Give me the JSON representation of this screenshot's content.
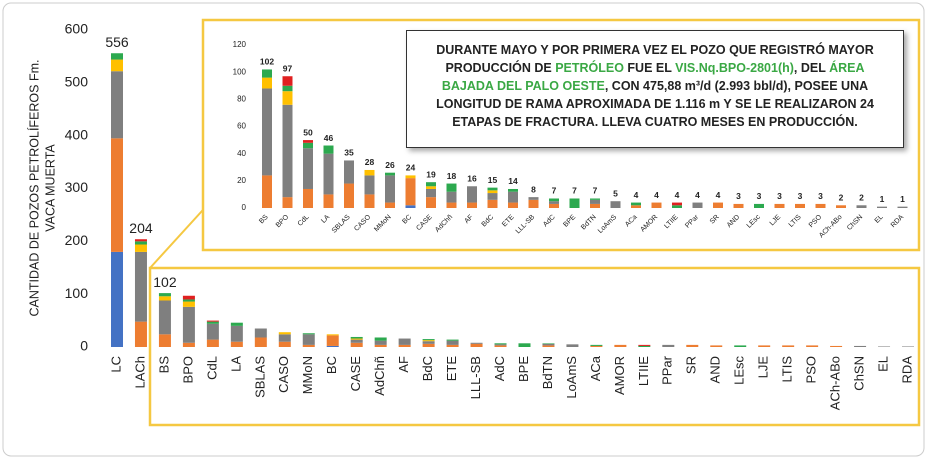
{
  "chart_data": [
    {
      "type": "stacked_bar",
      "y_label": [
        "CANTIDAD DE POZOS PETROLÍFEROS Fm.",
        "VACA MUERTA"
      ],
      "categories": [
        "LC",
        "LACh",
        "BS",
        "BPO",
        "CdL",
        "LA",
        "SBLAS",
        "CASO",
        "MMoN",
        "BC",
        "CASE",
        "AdChñ",
        "AF",
        "BdC",
        "ETE",
        "LLL-SB",
        "AdC",
        "BPE",
        "BdTN",
        "LoAmS",
        "ACa",
        "AMOR",
        "LTIIE",
        "PPar",
        "SR",
        "AND",
        "LEsc",
        "LJE",
        "LTIS",
        "PSO",
        "ACh-ABo",
        "ChSN",
        "EL",
        "RDA"
      ],
      "series": [
        {
          "color": "#4472c4",
          "values": [
            180,
            0,
            0,
            0,
            0,
            0,
            0,
            0,
            0,
            2,
            0,
            0,
            0,
            0,
            0,
            0,
            0,
            0,
            0,
            0,
            0,
            0,
            0,
            0,
            0,
            0,
            0,
            0,
            0,
            0,
            0,
            0,
            0,
            0
          ]
        },
        {
          "color": "#ed7d31",
          "values": [
            215,
            48,
            24,
            8,
            14,
            10,
            18,
            10,
            4,
            20,
            8,
            4,
            4,
            6,
            4,
            6,
            3,
            0,
            3,
            0,
            2,
            4,
            0,
            0,
            4,
            3,
            0,
            3,
            3,
            3,
            2,
            0,
            0,
            0
          ]
        },
        {
          "color": "#7f7f7f",
          "values": [
            127,
            132,
            64,
            68,
            30,
            30,
            17,
            14,
            20,
            0,
            6,
            8,
            12,
            5,
            8,
            2,
            2,
            0,
            3,
            5,
            0,
            0,
            0,
            4,
            0,
            0,
            0,
            0,
            0,
            0,
            0,
            2,
            1,
            1
          ]
        },
        {
          "color": "#ffc000",
          "values": [
            22,
            14,
            8,
            10,
            0,
            0,
            0,
            4,
            0,
            2,
            2,
            0,
            0,
            2,
            0,
            0,
            0,
            0,
            0,
            0,
            0,
            0,
            0,
            0,
            0,
            0,
            0,
            0,
            0,
            0,
            0,
            0,
            0,
            0
          ]
        },
        {
          "color": "#2ca94f",
          "values": [
            12,
            6,
            6,
            4,
            4,
            6,
            0,
            0,
            2,
            0,
            3,
            6,
            0,
            2,
            2,
            0,
            2,
            7,
            1,
            0,
            2,
            0,
            2,
            0,
            0,
            0,
            3,
            0,
            0,
            0,
            0,
            0,
            0,
            0
          ]
        },
        {
          "color": "#e02020",
          "values": [
            0,
            4,
            0,
            7,
            2,
            0,
            0,
            0,
            0,
            0,
            0,
            0,
            0,
            0,
            0,
            0,
            0,
            0,
            0,
            0,
            0,
            0,
            2,
            0,
            0,
            0,
            0,
            0,
            0,
            0,
            0,
            0,
            0,
            0
          ]
        }
      ],
      "totals": [
        556,
        204,
        102,
        null,
        null,
        null,
        null,
        null,
        null,
        null,
        null,
        null,
        null,
        null,
        null,
        null,
        null,
        null,
        null,
        null,
        null,
        null,
        null,
        null,
        null,
        null,
        null,
        null,
        null,
        null,
        null,
        null,
        null,
        null
      ],
      "ylim": [
        0,
        600
      ],
      "yticks": [
        0,
        100,
        200,
        300,
        400,
        500,
        600
      ]
    },
    {
      "type": "stacked_bar",
      "categories": [
        "BS",
        "BPO",
        "CdL",
        "LA",
        "SBLAS",
        "CASO",
        "MMoN",
        "BC",
        "CASE",
        "AdChñ",
        "AF",
        "BdC",
        "ETE",
        "LLL-SB",
        "AdC",
        "BPE",
        "BdTN",
        "LoAmS",
        "ACa",
        "AMOR",
        "LTIIE",
        "PPar",
        "SR",
        "AND",
        "LEsc",
        "LJE",
        "LTIS",
        "PSO",
        "ACh-ABo",
        "ChSN",
        "EL",
        "RDA"
      ],
      "series": [
        {
          "color": "#4472c4",
          "values": [
            0,
            0,
            0,
            0,
            0,
            0,
            0,
            2,
            0,
            0,
            0,
            0,
            0,
            0,
            0,
            0,
            0,
            0,
            0,
            0,
            0,
            0,
            0,
            0,
            0,
            0,
            0,
            0,
            0,
            0,
            0,
            0
          ]
        },
        {
          "color": "#ed7d31",
          "values": [
            24,
            8,
            14,
            10,
            18,
            10,
            4,
            20,
            8,
            4,
            4,
            6,
            4,
            6,
            3,
            0,
            3,
            0,
            2,
            4,
            0,
            0,
            4,
            3,
            0,
            3,
            3,
            3,
            2,
            0,
            0,
            0
          ]
        },
        {
          "color": "#7f7f7f",
          "values": [
            64,
            68,
            30,
            30,
            17,
            14,
            20,
            0,
            6,
            8,
            12,
            5,
            8,
            2,
            2,
            0,
            3,
            5,
            0,
            0,
            0,
            4,
            0,
            0,
            0,
            0,
            0,
            0,
            0,
            2,
            1,
            1
          ]
        },
        {
          "color": "#ffc000",
          "values": [
            8,
            10,
            0,
            0,
            0,
            4,
            0,
            2,
            2,
            0,
            0,
            2,
            0,
            0,
            0,
            0,
            0,
            0,
            0,
            0,
            0,
            0,
            0,
            0,
            0,
            0,
            0,
            0,
            0,
            0,
            0,
            0
          ]
        },
        {
          "color": "#2ca94f",
          "values": [
            6,
            4,
            4,
            6,
            0,
            0,
            2,
            0,
            3,
            6,
            0,
            2,
            2,
            0,
            2,
            7,
            1,
            0,
            2,
            0,
            2,
            0,
            0,
            0,
            3,
            0,
            0,
            0,
            0,
            0,
            0,
            0
          ]
        },
        {
          "color": "#e02020",
          "values": [
            0,
            7,
            2,
            0,
            0,
            0,
            0,
            0,
            0,
            0,
            0,
            0,
            0,
            0,
            0,
            0,
            0,
            0,
            0,
            0,
            2,
            0,
            0,
            0,
            0,
            0,
            0,
            0,
            0,
            0,
            0,
            0
          ]
        }
      ],
      "totals": [
        102,
        97,
        50,
        46,
        35,
        28,
        26,
        24,
        19,
        18,
        16,
        15,
        14,
        8,
        7,
        7,
        7,
        5,
        4,
        4,
        4,
        4,
        4,
        3,
        3,
        3,
        3,
        3,
        2,
        2,
        1,
        1
      ],
      "ylim": [
        0,
        120
      ],
      "yticks": [
        0,
        20,
        40,
        60,
        80,
        100,
        120
      ],
      "annotation": [
        {
          "text": "DURANTE MAYO Y POR PRIMERA VEZ EL POZO QUE REGISTRÓ MAYOR PRODUCCIÓN DE ",
          "highlight": false
        },
        {
          "text": "PETRÓLEO",
          "highlight": true
        },
        {
          "text": " FUE EL ",
          "highlight": false
        },
        {
          "text": "VIS.Nq.BPO-2801(h)",
          "highlight": true
        },
        {
          "text": ", DEL ",
          "highlight": false
        },
        {
          "text": "ÁREA BAJADA DEL PALO OESTE",
          "highlight": true
        },
        {
          "text": ", CON 475,88 m³/d (2.993 bbl/d), POSEE UNA LONGITUD DE RAMA APROXIMADA DE 1.116 m Y SE LE REALIZARON 24 ETAPAS DE FRACTURA. LLEVA CUATRO MESES EN PRODUCCIÓN.",
          "highlight": false
        }
      ]
    }
  ]
}
